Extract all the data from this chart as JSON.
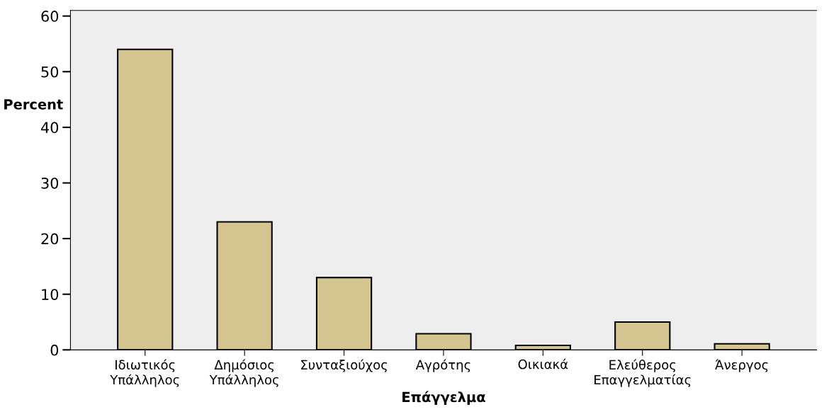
{
  "chart_data": {
    "type": "bar",
    "xlabel": "Επάγγελμα",
    "ylabel": "Percent",
    "categories": [
      "Ιδιωτικός\nΥπάλληλος",
      "Δημόσιος\nΥπάλληλος",
      "Συνταξιούχος",
      "Αγρότης",
      "Οικιακά",
      "Ελεύθερος\nΕπαγγελματίας",
      "Άνεργος"
    ],
    "values": [
      54,
      23,
      13,
      2.9,
      0.8,
      5,
      1.1
    ],
    "color": "#d4c48f",
    "ylim": [
      0,
      61
    ],
    "yticks": [
      0,
      10,
      20,
      30,
      40,
      50,
      60
    ],
    "grid": false
  }
}
